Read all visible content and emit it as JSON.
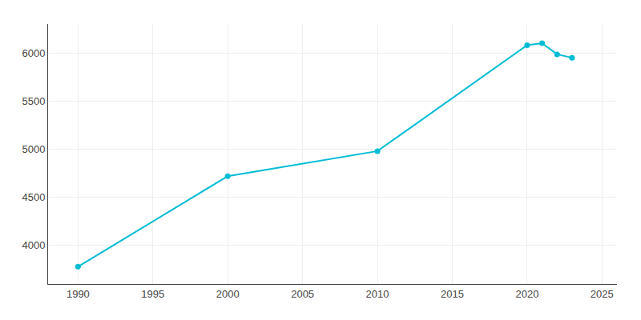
{
  "chart_data": {
    "type": "line",
    "x": [
      1990,
      2000,
      2010,
      2020,
      2021,
      2022,
      2023
    ],
    "values": [
      3780,
      4720,
      4980,
      6080,
      6100,
      5985,
      5950
    ],
    "color": "#00BCD4",
    "marker": "circle",
    "xlim": [
      1988,
      2026
    ],
    "ylim": [
      3600,
      6300
    ],
    "xticks": [
      1990,
      1995,
      2000,
      2005,
      2010,
      2015,
      2020,
      2025
    ],
    "yticks": [
      4000,
      4500,
      5000,
      5500,
      6000
    ],
    "grid": true
  }
}
